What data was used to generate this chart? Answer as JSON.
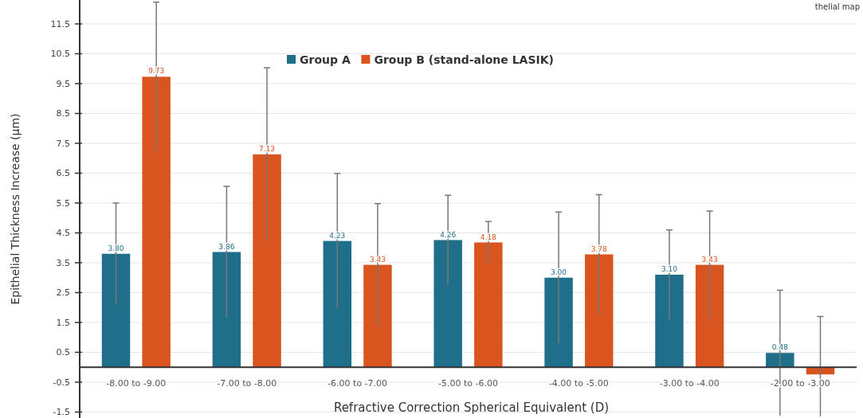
{
  "chart_data": {
    "type": "bar",
    "xlabel": "Refractive Correction Spherical Equivalent (D)",
    "ylabel": "Epithelial Thickness Increase (μm)",
    "categories": [
      "-8.00 to -9.00",
      "-7.00 to -8.00",
      "-6.00 to -7.00",
      "-5.00 to -6.00",
      "-4.00 to -5.00",
      "-3.00 to -4.00",
      "-2.00 to -3.00"
    ],
    "series": [
      {
        "name": "Group A",
        "color": "#1f6f8b",
        "values": [
          3.8,
          3.86,
          4.23,
          4.26,
          3.0,
          3.1,
          0.48
        ],
        "errors": [
          1.7,
          2.2,
          2.26,
          1.5,
          2.2,
          1.5,
          2.1
        ],
        "value_labels": [
          "3.80",
          "3.86",
          "4.23",
          "4.26",
          "3.00",
          "3.10",
          "0.48"
        ]
      },
      {
        "name": "Group B (stand-alone LASIK)",
        "color": "#d9541e",
        "values": [
          9.73,
          7.13,
          3.43,
          4.18,
          3.78,
          3.43,
          -0.24
        ],
        "errors": [
          2.5,
          2.9,
          2.05,
          0.7,
          2.0,
          1.8,
          [
            -1.65,
            1.7
          ]
        ],
        "value_labels": [
          "9.73",
          "7.13",
          "3.43",
          "4.18",
          "3.78",
          "3.43",
          null
        ]
      }
    ],
    "ylim": [
      -1.7,
      12.3
    ],
    "yticks": [
      {
        "value": -1.5,
        "label": "-1.5"
      },
      {
        "value": -0.5,
        "label": "-0.5"
      },
      0.5,
      1.5,
      2.5,
      3.5,
      4.5,
      5.5,
      6.5,
      7.5,
      8.5,
      9.5,
      10.5,
      11.5
    ],
    "grid": "y",
    "legend": "top",
    "annotations": [
      "thelial map"
    ]
  }
}
